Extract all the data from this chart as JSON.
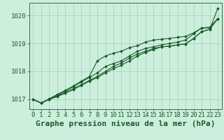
{
  "title": "Graphe pression niveau de la mer (hPa)",
  "bg_color": "#cceedd",
  "line_color": "#1a5c2a",
  "grid_color": "#aaccbb",
  "ylim": [
    1016.65,
    1020.45
  ],
  "xlim": [
    -0.5,
    23.5
  ],
  "yticks": [
    1017,
    1018,
    1019,
    1020
  ],
  "xticks": [
    0,
    1,
    2,
    3,
    4,
    5,
    6,
    7,
    8,
    9,
    10,
    11,
    12,
    13,
    14,
    15,
    16,
    17,
    18,
    19,
    20,
    21,
    22,
    23
  ],
  "series": [
    [
      1017.0,
      1016.87,
      1017.0,
      1017.1,
      1017.22,
      1017.35,
      1017.5,
      1017.65,
      1017.78,
      1017.95,
      1018.1,
      1018.22,
      1018.38,
      1018.55,
      1018.68,
      1018.78,
      1018.88,
      1018.9,
      1018.95,
      1018.98,
      1019.18,
      1019.42,
      1019.5,
      1020.25
    ],
    [
      1017.0,
      1016.87,
      1017.0,
      1017.12,
      1017.25,
      1017.38,
      1017.52,
      1017.68,
      1017.82,
      1018.0,
      1018.18,
      1018.3,
      1018.48,
      1018.62,
      1018.72,
      1018.82,
      1018.88,
      1018.9,
      1018.95,
      1018.98,
      1019.18,
      1019.42,
      1019.5,
      1019.88
    ],
    [
      1017.0,
      1016.87,
      1017.0,
      1017.15,
      1017.3,
      1017.45,
      1017.62,
      1017.78,
      1017.95,
      1018.18,
      1018.28,
      1018.38,
      1018.55,
      1018.72,
      1018.82,
      1018.88,
      1018.95,
      1019.0,
      1019.05,
      1019.12,
      1019.35,
      1019.55,
      1019.55,
      1019.88
    ],
    [
      1017.0,
      1016.87,
      1017.02,
      1017.18,
      1017.32,
      1017.48,
      1017.65,
      1017.82,
      1018.38,
      1018.55,
      1018.65,
      1018.72,
      1018.85,
      1018.92,
      1019.05,
      1019.12,
      1019.15,
      1019.18,
      1019.22,
      1019.25,
      1019.38,
      1019.55,
      1019.58,
      1019.88
    ]
  ],
  "title_fontsize": 8,
  "tick_fontsize": 6.5,
  "figsize": [
    3.2,
    2.0
  ],
  "dpi": 100
}
